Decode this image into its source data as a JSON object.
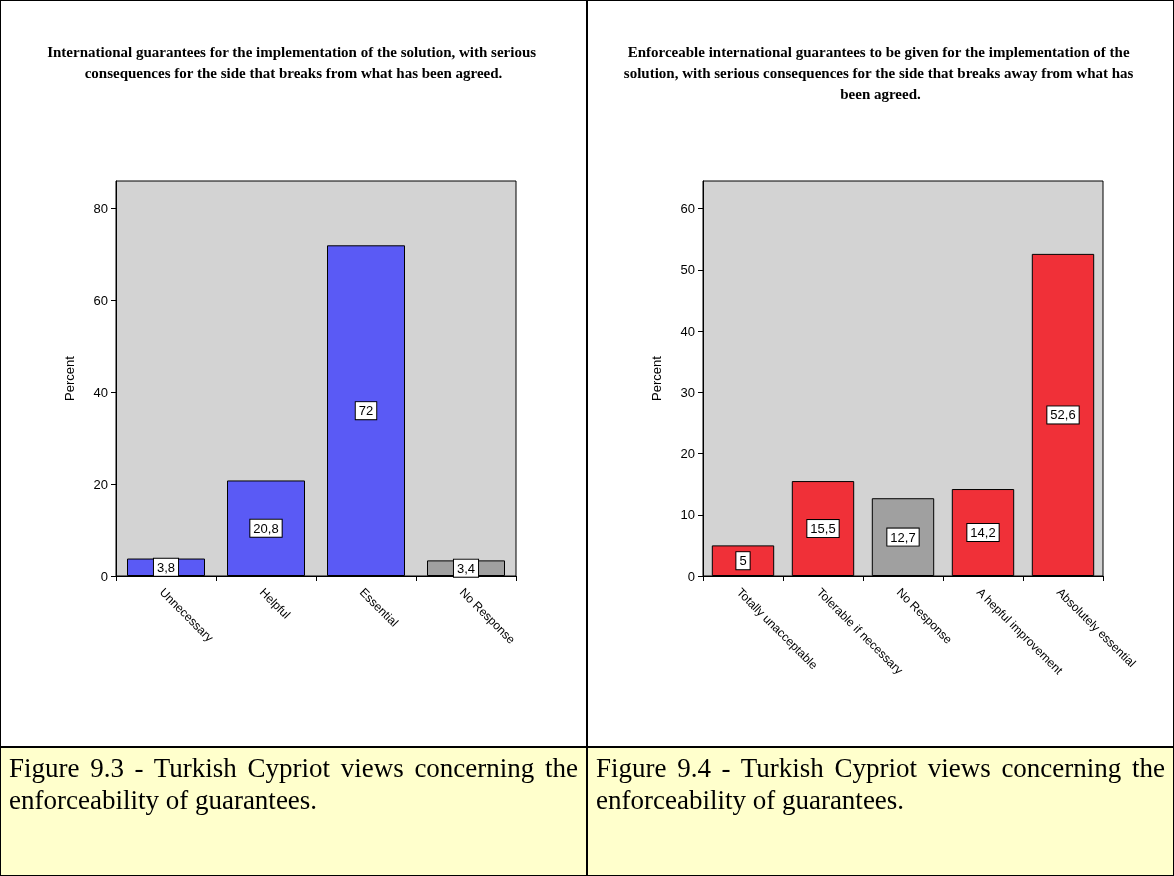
{
  "chart_data": [
    {
      "type": "bar",
      "title": "International guarantees for the implementation of the solution, with serious consequences for the side that breaks from what has been agreed.",
      "ylabel": "Percent",
      "categories": [
        "Unnecessary",
        "Helpful",
        "Essential",
        "No Response"
      ],
      "values": [
        3.8,
        20.8,
        72,
        3.4
      ],
      "value_labels": [
        "3,8",
        "20,8",
        "72",
        "3,4"
      ],
      "colors": [
        "#5a5af5",
        "#5a5af5",
        "#5a5af5",
        "#a0a0a0"
      ],
      "ylim": [
        0,
        86
      ],
      "yticks": [
        0,
        20,
        40,
        60,
        80
      ],
      "grid": false,
      "annotations": [
        "Figure 9.3 - Turkish Cypriot views concerning the enforceability of guarantees."
      ]
    },
    {
      "type": "bar",
      "title": "Enforceable international guarantees to be given for the implementation of the solution, with serious consequences for the side that breaks away from what has been agreed.",
      "ylabel": "Percent",
      "categories": [
        "Totally unacceptable",
        "Tolerable if necessary",
        "No Response",
        "A hepful improvement",
        "Absolutely essential"
      ],
      "values": [
        5,
        15.5,
        12.7,
        14.2,
        52.6
      ],
      "value_labels": [
        "5",
        "15,5",
        "12,7",
        "14,2",
        "52,6"
      ],
      "colors": [
        "#f03038",
        "#f03038",
        "#a0a0a0",
        "#f03038",
        "#f03038"
      ],
      "ylim": [
        0,
        64.5
      ],
      "yticks": [
        0,
        10,
        20,
        30,
        40,
        50,
        60
      ],
      "grid": false,
      "annotations": [
        "Figure 9.4 - Turkish Cypriot views concerning the enforceability of guarantees."
      ]
    }
  ]
}
